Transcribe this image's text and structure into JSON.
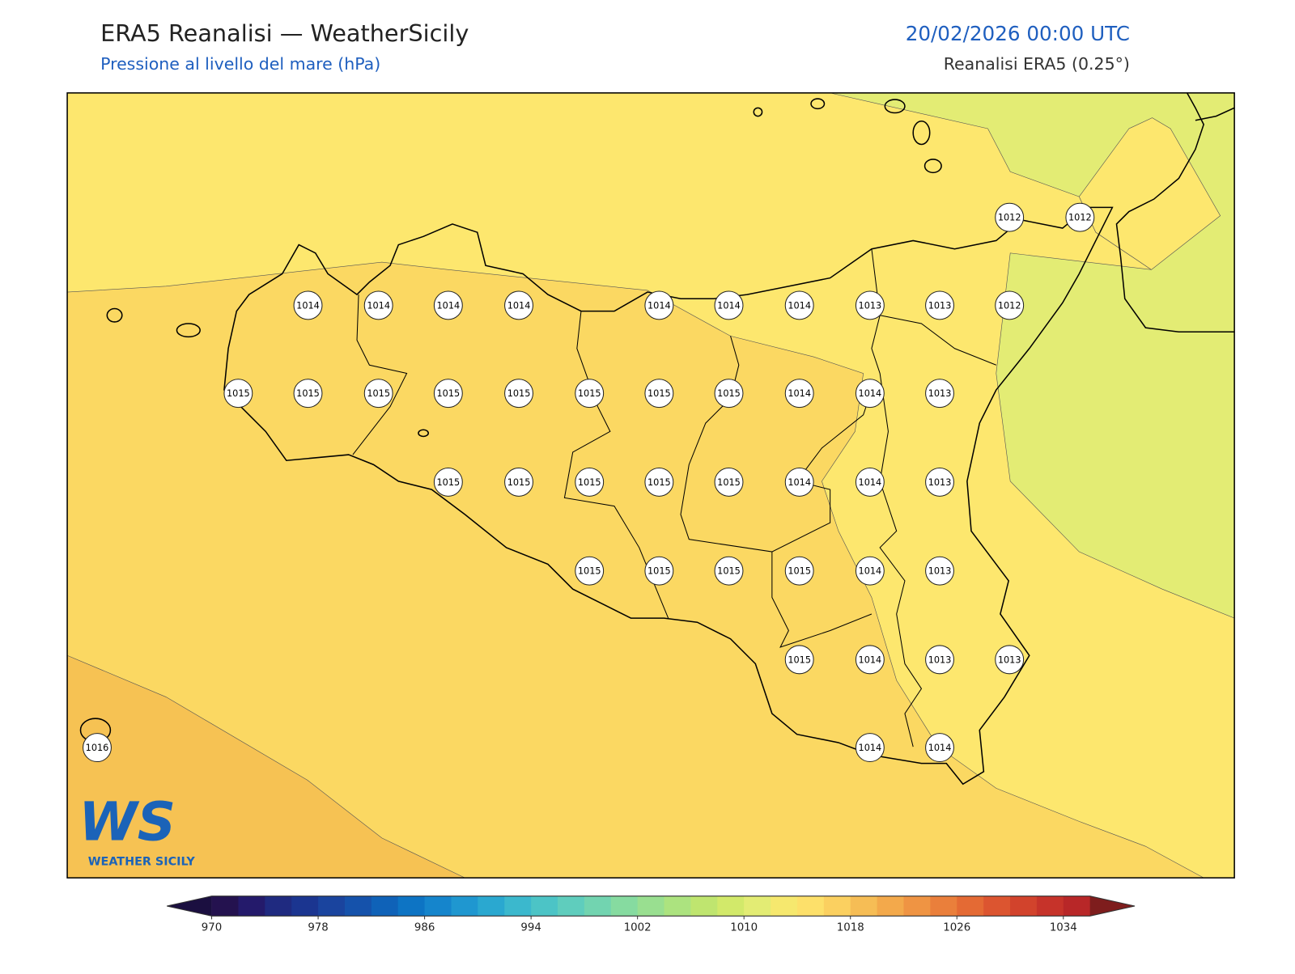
{
  "header": {
    "title": "ERA5 Reanalisi — WeatherSicily",
    "subtitle": "Pressione al livello del mare (hPa)",
    "datetime": "20/02/2026 00:00 UTC",
    "source": "Reanalisi ERA5 (0.25°)"
  },
  "stations": [
    1012,
    1012,
    1014,
    1014,
    1014,
    1014,
    1014,
    1014,
    1014,
    1013,
    1013,
    1012,
    1015,
    1015,
    1015,
    1015,
    1015,
    1015,
    1015,
    1015,
    1014,
    1014,
    1013,
    1015,
    1015,
    1015,
    1015,
    1015,
    1014,
    1014,
    1013,
    1015,
    1015,
    1015,
    1015,
    1014,
    1013,
    1015,
    1014,
    1013,
    1013,
    1016,
    1014,
    1014
  ],
  "colorbar": {
    "range": [
      970,
      1036
    ],
    "ticks": [
      970,
      978,
      986,
      994,
      1002,
      1010,
      1018,
      1026,
      1034
    ],
    "colors": [
      "#24124f",
      "#241a6b",
      "#1f2a80",
      "#1b3590",
      "#1a449e",
      "#1552ab",
      "#0f62b8",
      "#0d74c4",
      "#1585cc",
      "#1f97d0",
      "#2aa8d0",
      "#3bb8cd",
      "#4cc4c6",
      "#5fcdbd",
      "#72d4b0",
      "#86dba0",
      "#99df90",
      "#ace37f",
      "#bfe56f",
      "#d2e96a",
      "#e3ec74",
      "#f6e86e",
      "#fde06a",
      "#fbd060",
      "#f6bd55",
      "#f3a94b",
      "#ef9443",
      "#ea7f3b",
      "#e46a34",
      "#dc5530",
      "#d2432c",
      "#c6332a",
      "#b82728"
    ],
    "under_color": "#1b0f40",
    "over_color": "#7e1d1d"
  },
  "logo": {
    "mark": "WS",
    "name": "WEATHER SICILY"
  }
}
